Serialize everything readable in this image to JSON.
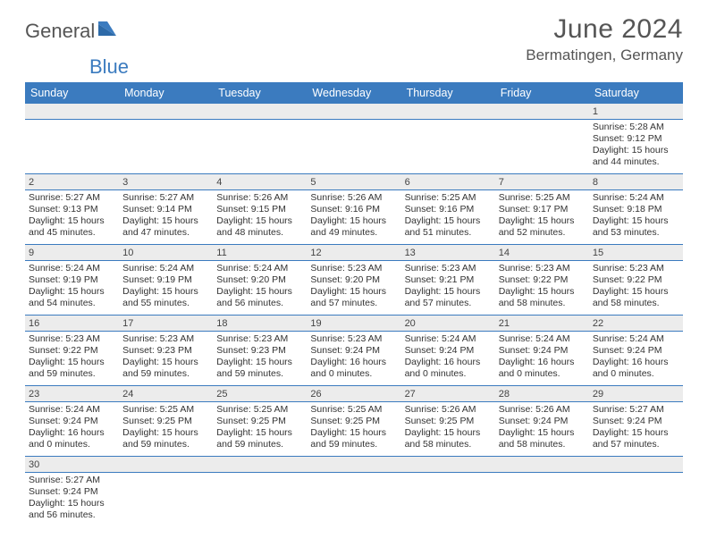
{
  "logo": {
    "text1": "General",
    "text2": "Blue"
  },
  "title": "June 2024",
  "location": "Bermatingen, Germany",
  "colors": {
    "header_bg": "#3b7bbf",
    "header_text": "#ffffff",
    "daynum_bg": "#ececec",
    "divider": "#3b7bbf",
    "text": "#333333",
    "title_text": "#555555"
  },
  "fonts": {
    "title_size": 30,
    "location_size": 17,
    "header_size": 12.5,
    "cell_size": 10.5
  },
  "weekdays": [
    "Sunday",
    "Monday",
    "Tuesday",
    "Wednesday",
    "Thursday",
    "Friday",
    "Saturday"
  ],
  "weeks": [
    [
      null,
      null,
      null,
      null,
      null,
      null,
      {
        "day": "1",
        "sunrise": "Sunrise: 5:28 AM",
        "sunset": "Sunset: 9:12 PM",
        "daylight": "Daylight: 15 hours and 44 minutes."
      }
    ],
    [
      {
        "day": "2",
        "sunrise": "Sunrise: 5:27 AM",
        "sunset": "Sunset: 9:13 PM",
        "daylight": "Daylight: 15 hours and 45 minutes."
      },
      {
        "day": "3",
        "sunrise": "Sunrise: 5:27 AM",
        "sunset": "Sunset: 9:14 PM",
        "daylight": "Daylight: 15 hours and 47 minutes."
      },
      {
        "day": "4",
        "sunrise": "Sunrise: 5:26 AM",
        "sunset": "Sunset: 9:15 PM",
        "daylight": "Daylight: 15 hours and 48 minutes."
      },
      {
        "day": "5",
        "sunrise": "Sunrise: 5:26 AM",
        "sunset": "Sunset: 9:16 PM",
        "daylight": "Daylight: 15 hours and 49 minutes."
      },
      {
        "day": "6",
        "sunrise": "Sunrise: 5:25 AM",
        "sunset": "Sunset: 9:16 PM",
        "daylight": "Daylight: 15 hours and 51 minutes."
      },
      {
        "day": "7",
        "sunrise": "Sunrise: 5:25 AM",
        "sunset": "Sunset: 9:17 PM",
        "daylight": "Daylight: 15 hours and 52 minutes."
      },
      {
        "day": "8",
        "sunrise": "Sunrise: 5:24 AM",
        "sunset": "Sunset: 9:18 PM",
        "daylight": "Daylight: 15 hours and 53 minutes."
      }
    ],
    [
      {
        "day": "9",
        "sunrise": "Sunrise: 5:24 AM",
        "sunset": "Sunset: 9:19 PM",
        "daylight": "Daylight: 15 hours and 54 minutes."
      },
      {
        "day": "10",
        "sunrise": "Sunrise: 5:24 AM",
        "sunset": "Sunset: 9:19 PM",
        "daylight": "Daylight: 15 hours and 55 minutes."
      },
      {
        "day": "11",
        "sunrise": "Sunrise: 5:24 AM",
        "sunset": "Sunset: 9:20 PM",
        "daylight": "Daylight: 15 hours and 56 minutes."
      },
      {
        "day": "12",
        "sunrise": "Sunrise: 5:23 AM",
        "sunset": "Sunset: 9:20 PM",
        "daylight": "Daylight: 15 hours and 57 minutes."
      },
      {
        "day": "13",
        "sunrise": "Sunrise: 5:23 AM",
        "sunset": "Sunset: 9:21 PM",
        "daylight": "Daylight: 15 hours and 57 minutes."
      },
      {
        "day": "14",
        "sunrise": "Sunrise: 5:23 AM",
        "sunset": "Sunset: 9:22 PM",
        "daylight": "Daylight: 15 hours and 58 minutes."
      },
      {
        "day": "15",
        "sunrise": "Sunrise: 5:23 AM",
        "sunset": "Sunset: 9:22 PM",
        "daylight": "Daylight: 15 hours and 58 minutes."
      }
    ],
    [
      {
        "day": "16",
        "sunrise": "Sunrise: 5:23 AM",
        "sunset": "Sunset: 9:22 PM",
        "daylight": "Daylight: 15 hours and 59 minutes."
      },
      {
        "day": "17",
        "sunrise": "Sunrise: 5:23 AM",
        "sunset": "Sunset: 9:23 PM",
        "daylight": "Daylight: 15 hours and 59 minutes."
      },
      {
        "day": "18",
        "sunrise": "Sunrise: 5:23 AM",
        "sunset": "Sunset: 9:23 PM",
        "daylight": "Daylight: 15 hours and 59 minutes."
      },
      {
        "day": "19",
        "sunrise": "Sunrise: 5:23 AM",
        "sunset": "Sunset: 9:24 PM",
        "daylight": "Daylight: 16 hours and 0 minutes."
      },
      {
        "day": "20",
        "sunrise": "Sunrise: 5:24 AM",
        "sunset": "Sunset: 9:24 PM",
        "daylight": "Daylight: 16 hours and 0 minutes."
      },
      {
        "day": "21",
        "sunrise": "Sunrise: 5:24 AM",
        "sunset": "Sunset: 9:24 PM",
        "daylight": "Daylight: 16 hours and 0 minutes."
      },
      {
        "day": "22",
        "sunrise": "Sunrise: 5:24 AM",
        "sunset": "Sunset: 9:24 PM",
        "daylight": "Daylight: 16 hours and 0 minutes."
      }
    ],
    [
      {
        "day": "23",
        "sunrise": "Sunrise: 5:24 AM",
        "sunset": "Sunset: 9:24 PM",
        "daylight": "Daylight: 16 hours and 0 minutes."
      },
      {
        "day": "24",
        "sunrise": "Sunrise: 5:25 AM",
        "sunset": "Sunset: 9:25 PM",
        "daylight": "Daylight: 15 hours and 59 minutes."
      },
      {
        "day": "25",
        "sunrise": "Sunrise: 5:25 AM",
        "sunset": "Sunset: 9:25 PM",
        "daylight": "Daylight: 15 hours and 59 minutes."
      },
      {
        "day": "26",
        "sunrise": "Sunrise: 5:25 AM",
        "sunset": "Sunset: 9:25 PM",
        "daylight": "Daylight: 15 hours and 59 minutes."
      },
      {
        "day": "27",
        "sunrise": "Sunrise: 5:26 AM",
        "sunset": "Sunset: 9:25 PM",
        "daylight": "Daylight: 15 hours and 58 minutes."
      },
      {
        "day": "28",
        "sunrise": "Sunrise: 5:26 AM",
        "sunset": "Sunset: 9:24 PM",
        "daylight": "Daylight: 15 hours and 58 minutes."
      },
      {
        "day": "29",
        "sunrise": "Sunrise: 5:27 AM",
        "sunset": "Sunset: 9:24 PM",
        "daylight": "Daylight: 15 hours and 57 minutes."
      }
    ],
    [
      {
        "day": "30",
        "sunrise": "Sunrise: 5:27 AM",
        "sunset": "Sunset: 9:24 PM",
        "daylight": "Daylight: 15 hours and 56 minutes."
      },
      null,
      null,
      null,
      null,
      null,
      null
    ]
  ]
}
